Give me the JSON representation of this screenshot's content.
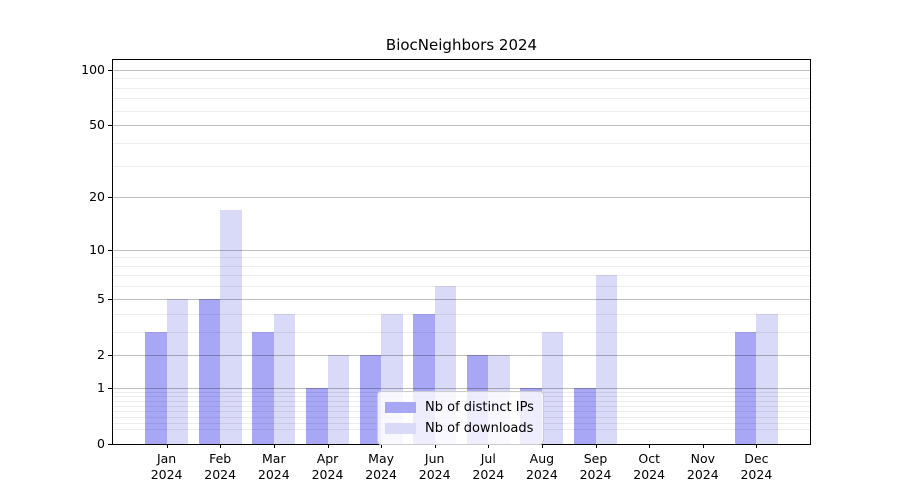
{
  "title": "BiocNeighbors 2024",
  "colors": {
    "distinct_ips": "#a7a7f6",
    "downloads": "#d9d9f8",
    "axis": "#000000",
    "grid_major": "rgba(0,0,0,0.26)",
    "grid_minor": "rgba(0,0,0,0.07)",
    "legend_background": "rgba(255,255,255,0.8)",
    "legend_border": "#cccccc"
  },
  "chart_data": {
    "type": "bar",
    "title": "BiocNeighbors 2024",
    "categories": [
      "Jan",
      "Feb",
      "Mar",
      "Apr",
      "May",
      "Jun",
      "Jul",
      "Aug",
      "Sep",
      "Oct",
      "Nov",
      "Dec"
    ],
    "x_tick_second_line": "2024",
    "series": [
      {
        "name": "Nb of distinct IPs",
        "color": "#a7a7f6",
        "values": [
          3,
          5,
          3,
          1,
          2,
          4,
          2,
          1,
          1,
          0,
          0,
          3
        ]
      },
      {
        "name": "Nb of downloads",
        "color": "#d9d9f8",
        "values": [
          5,
          17,
          4,
          2,
          4,
          6,
          2,
          3,
          7,
          0,
          0,
          4
        ]
      }
    ],
    "yscale": "log1p",
    "ylim": [
      0,
      113
    ],
    "yticks": [
      0,
      1,
      2,
      5,
      10,
      20,
      50,
      100
    ],
    "y_minor_ticks": [
      0.2,
      0.3,
      0.4,
      0.5,
      0.6,
      0.7,
      0.8,
      0.9,
      3,
      4,
      6,
      7,
      8,
      9,
      30,
      40,
      60,
      70,
      80,
      90
    ],
    "xlabel": "",
    "ylabel": "",
    "grid": "horizontal",
    "legend_position": "lower center"
  }
}
